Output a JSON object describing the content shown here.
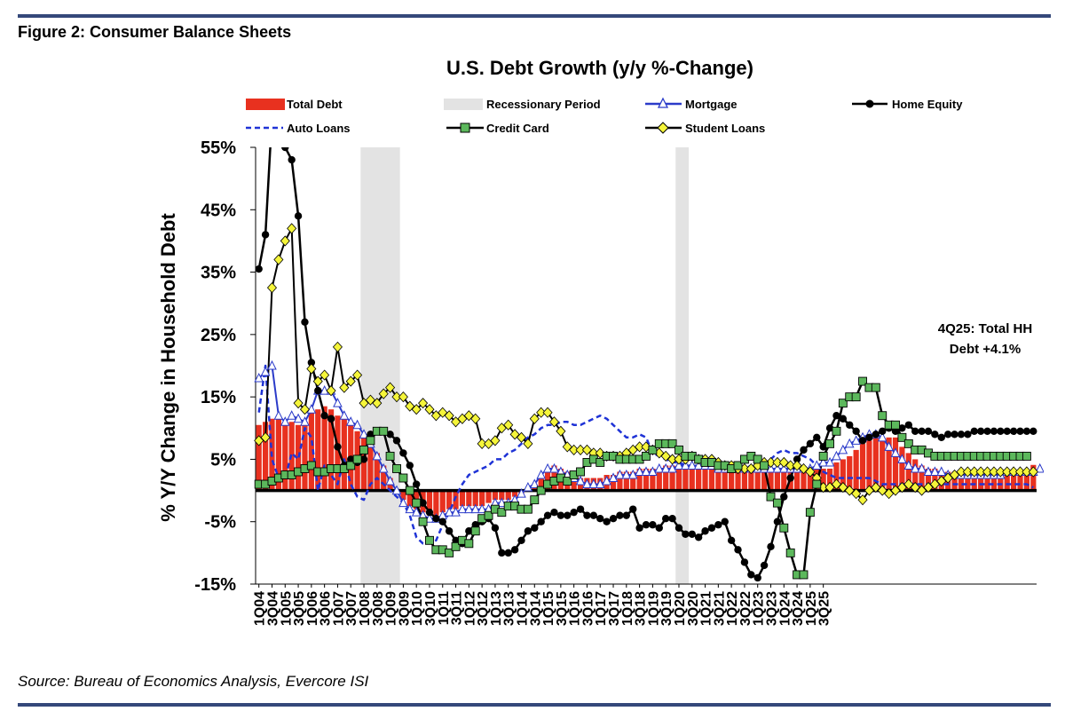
{
  "figure_label": "Figure 2: Consumer Balance Sheets",
  "source": "Source: Bureau of Economics Analysis, Evercore ISI",
  "colors": {
    "total_debt": "#e8311f",
    "recession": "#e3e3e3",
    "mortgage": "#2b3bc9",
    "home_equity": "#000000",
    "auto_loans": "#1f33d6",
    "credit_card": "#5cb85c",
    "student_loans": "#f5f53a",
    "rule": "#34487a"
  },
  "chart_data": {
    "type": "bar",
    "title": "U.S. Debt Growth (y/y %-Change)",
    "ylabel": "% Y/Y Change in Household Debt",
    "xlabel": "",
    "ylim": [
      -15,
      55
    ],
    "yticks": [
      55,
      45,
      35,
      25,
      15,
      5,
      -5,
      -15
    ],
    "ytick_labels": [
      "55%",
      "45%",
      "35%",
      "25%",
      "15%",
      "5%",
      "-5%",
      "-15%"
    ],
    "xtick_labels": [
      "1Q04",
      "3Q04",
      "1Q05",
      "3Q05",
      "1Q06",
      "3Q06",
      "1Q07",
      "3Q07",
      "1Q08",
      "3Q08",
      "1Q09",
      "3Q09",
      "1Q10",
      "3Q10",
      "1Q11",
      "3Q11",
      "1Q12",
      "3Q12",
      "1Q13",
      "3Q13",
      "1Q14",
      "3Q14",
      "1Q15",
      "3Q15",
      "1Q16",
      "3Q16",
      "1Q17",
      "3Q17",
      "1Q18",
      "3Q18",
      "1Q19",
      "3Q19",
      "1Q20",
      "3Q20",
      "1Q21",
      "3Q21",
      "1Q22",
      "3Q22",
      "1Q23",
      "3Q23",
      "1Q24",
      "3Q24",
      "1Q25",
      "3Q25"
    ],
    "legend_position": "top",
    "legend": [
      "Total Debt",
      "Recessionary Period",
      "Mortgage",
      "Home Equity",
      "Auto Loans",
      "Credit Card",
      "Student Loans"
    ],
    "recessions": [
      [
        "1Q08",
        "2Q09"
      ],
      [
        "1Q20",
        "2Q20"
      ]
    ],
    "annotation": [
      "4Q25: Total HH",
      "Debt +4.1%"
    ],
    "series": [
      {
        "name": "Total Debt",
        "kind": "bar",
        "values": [
          10.5,
          11,
          11.5,
          11.5,
          11,
          11,
          10.5,
          11,
          12.5,
          13,
          13.5,
          13,
          12,
          11.5,
          10.5,
          9.5,
          9,
          8,
          6,
          4,
          2,
          0,
          -1.5,
          -2.5,
          -3,
          -3.5,
          -4,
          -4,
          -3.5,
          -3,
          -3,
          -2.5,
          -2.5,
          -2.5,
          -2.5,
          -2,
          -1.5,
          -1.5,
          -1.5,
          -1,
          -0.5,
          0,
          1,
          2,
          3,
          4,
          3.5,
          3,
          2.5,
          2,
          2,
          2,
          2,
          2.5,
          2.5,
          3,
          3,
          3,
          3.5,
          3.5,
          3.5,
          3.5,
          4,
          4,
          4,
          4,
          4,
          4,
          4,
          4,
          3.5,
          3.5,
          3.5,
          3.5,
          3.5,
          3.5,
          3.5,
          3.5,
          3.5,
          3.5,
          3.5,
          3.5,
          3.5,
          3.5,
          3.5,
          3.5,
          3.5,
          3.5,
          4.5,
          5,
          5.5,
          6.5,
          7.5,
          8,
          8.5,
          8.5,
          8.5,
          8.5,
          7,
          6,
          5,
          4,
          3.5,
          3.5,
          3,
          3,
          3,
          3,
          3,
          3,
          3,
          3,
          3,
          3,
          3,
          3,
          3,
          3,
          4.1
        ]
      },
      {
        "name": "Mortgage",
        "kind": "line",
        "values": [
          18,
          19,
          20,
          12,
          11,
          12,
          11.5,
          11,
          13,
          16,
          16,
          16,
          14,
          12,
          11,
          10.5,
          9,
          7.5,
          5.5,
          3.5,
          1.5,
          0,
          -2,
          -3,
          -3.5,
          -4,
          -4.5,
          -4.5,
          -4,
          -3.5,
          -3.5,
          -3,
          -3,
          -3,
          -3,
          -3,
          -2,
          -2,
          -2,
          -1.5,
          -0.5,
          0.5,
          1,
          2.5,
          3.5,
          3.5,
          3,
          2.5,
          2,
          1.5,
          1,
          1,
          1,
          1.5,
          2,
          2.5,
          2.5,
          2.5,
          3,
          3,
          3,
          3.5,
          3.5,
          3.5,
          4,
          4,
          4,
          4,
          4,
          4,
          3.5,
          3.5,
          3.5,
          3.5,
          3.5,
          3.5,
          3.5,
          3.5,
          3.5,
          3.5,
          3.5,
          3.5,
          3.5,
          3.5,
          3.5,
          4,
          4.5,
          4.5,
          5.5,
          6.5,
          7.5,
          8,
          8.5,
          9,
          9,
          8.5,
          7,
          6,
          5,
          4,
          3.5,
          3.5,
          3,
          3,
          3,
          2.5,
          2.5,
          2.5,
          2.5,
          2.5,
          2.5,
          2.5,
          2.5,
          2.5,
          3,
          3,
          3,
          3,
          3,
          3.5
        ]
      },
      {
        "name": "Home Equity",
        "kind": "line",
        "values": [
          35.5,
          41,
          60,
          58,
          55,
          53,
          44,
          27,
          20.5,
          16,
          12,
          11.5,
          7,
          4,
          5,
          4.5,
          5,
          9,
          9.5,
          9.5,
          9,
          8,
          6,
          4,
          1,
          -2,
          -3.5,
          -4.5,
          -5,
          -6.5,
          -8,
          -8.5,
          -6.5,
          -5.5,
          -5,
          -4.5,
          -6,
          -10,
          -10,
          -9.5,
          -8,
          -6.5,
          -6,
          -5,
          -4,
          -3.5,
          -4,
          -4,
          -3.5,
          -3,
          -4,
          -4,
          -4.5,
          -5,
          -4.5,
          -4,
          -4,
          -3,
          -6,
          -5.5,
          -5.5,
          -6,
          -4.5,
          -4.5,
          -6,
          -7,
          -7,
          -7.5,
          -6.5,
          -6,
          -5.5,
          -5,
          -8,
          -9.5,
          -11.5,
          -13.5,
          -14,
          -12,
          -9,
          -5,
          -1,
          2,
          5,
          6.5,
          7.5,
          8.5,
          7,
          10,
          12,
          11.5,
          10.5,
          9.5,
          8,
          8.5,
          9,
          9.5,
          10,
          9.5,
          10,
          10.5,
          9.5,
          9.5,
          9.5,
          9,
          8.5,
          9,
          9,
          9,
          9,
          9.5,
          9.5,
          9.5,
          9.5,
          9.5,
          9.5,
          9.5,
          9.5,
          9.5,
          9.5
        ]
      },
      {
        "name": "Auto Loans",
        "kind": "line",
        "values": [
          12.5,
          20,
          5,
          2,
          2,
          6,
          5,
          10,
          8.5,
          0,
          4,
          2.5,
          1,
          5,
          1,
          -1,
          -1.5,
          1,
          2,
          1,
          0,
          -1,
          -2,
          -4,
          -7.5,
          -8.5,
          -8.5,
          -8,
          -5.5,
          -3.5,
          -1,
          1,
          2.5,
          3,
          3.5,
          4,
          5,
          5,
          6,
          6.5,
          7.5,
          8.5,
          9,
          10,
          10.5,
          10.5,
          11,
          11,
          10.5,
          10.5,
          11,
          11.5,
          12,
          11.5,
          10.5,
          9.5,
          8.5,
          8.5,
          9,
          8.5,
          6,
          5.5,
          5,
          4.5,
          4.5,
          4,
          4,
          4,
          4,
          4.5,
          4.5,
          4.5,
          4,
          3.5,
          3.5,
          4,
          3.5,
          4,
          5,
          6,
          6.5,
          6,
          6,
          5.5,
          5,
          4,
          3,
          2.5,
          2,
          2,
          2,
          2,
          2,
          2,
          1.5,
          1,
          1,
          1,
          1,
          1,
          1,
          1,
          1,
          1,
          1,
          1,
          1,
          1,
          1,
          1,
          1,
          1,
          1,
          1,
          1,
          1,
          1,
          1,
          0.5
        ]
      },
      {
        "name": "Credit Card",
        "kind": "line",
        "values": [
          1,
          1,
          1.5,
          2,
          2.5,
          2.5,
          3,
          3.5,
          4,
          3,
          3,
          3.5,
          3.5,
          3.5,
          4,
          5,
          6.5,
          8,
          9.5,
          9.5,
          5.5,
          3.5,
          2,
          0,
          -2,
          -5,
          -8,
          -9.5,
          -9.5,
          -10,
          -9,
          -8,
          -8.5,
          -6.5,
          -4.5,
          -4,
          -3,
          -3.5,
          -2.5,
          -2.5,
          -3,
          -3,
          -1.5,
          0,
          1,
          1.5,
          2,
          1.5,
          2.5,
          3,
          4.5,
          5,
          4.5,
          5.5,
          5.5,
          5,
          5,
          5,
          5,
          5.5,
          6.5,
          7.5,
          7.5,
          7.5,
          6.5,
          5.5,
          5.5,
          5,
          4.5,
          4.5,
          4,
          4,
          3.5,
          4,
          5,
          5.5,
          5,
          4,
          -1,
          -2,
          -6,
          -10,
          -13.5,
          -13.5,
          -3.5,
          1,
          5.5,
          7.5,
          9.5,
          14,
          15,
          15,
          17.5,
          16.5,
          16.5,
          12,
          10.5,
          10.5,
          8.5,
          7.5,
          6.5,
          6.5,
          6,
          5.5,
          5.5,
          5.5,
          5.5,
          5.5,
          5.5,
          5.5,
          5.5,
          5.5,
          5.5,
          5.5,
          5.5,
          5.5,
          5.5,
          5.5
        ]
      },
      {
        "name": "Student Loans",
        "kind": "line",
        "values": [
          8,
          8.5,
          32.5,
          37,
          40,
          42,
          14,
          13,
          19.5,
          17.5,
          18.5,
          16,
          23,
          16.5,
          17.5,
          18.5,
          14,
          14.5,
          14,
          15.5,
          16.5,
          15,
          15,
          13.5,
          13,
          14,
          13,
          12,
          12.5,
          12,
          11,
          11.5,
          12,
          11.5,
          7.5,
          7.5,
          8,
          10,
          10.5,
          9,
          8.5,
          7.5,
          11.5,
          12.5,
          12.5,
          11,
          9.5,
          7,
          6.5,
          6.5,
          6.5,
          6,
          6,
          5.5,
          5.5,
          5.5,
          6,
          6.5,
          7,
          7,
          6.5,
          6,
          5.5,
          5,
          5,
          5,
          5.5,
          5,
          5,
          5,
          4.5,
          4,
          4,
          3.5,
          3.5,
          3.5,
          4,
          4.5,
          4.5,
          4.5,
          4.5,
          4,
          4,
          3.5,
          3,
          2,
          0.5,
          0.5,
          1,
          0.5,
          0,
          -0.5,
          -1.5,
          0,
          0.5,
          0,
          -0.5,
          0,
          0.5,
          1,
          0.5,
          0,
          0.5,
          1,
          1.5,
          2,
          2.5,
          3,
          3,
          3,
          3,
          3,
          3,
          3,
          3,
          3,
          3,
          3,
          3
        ]
      }
    ]
  }
}
